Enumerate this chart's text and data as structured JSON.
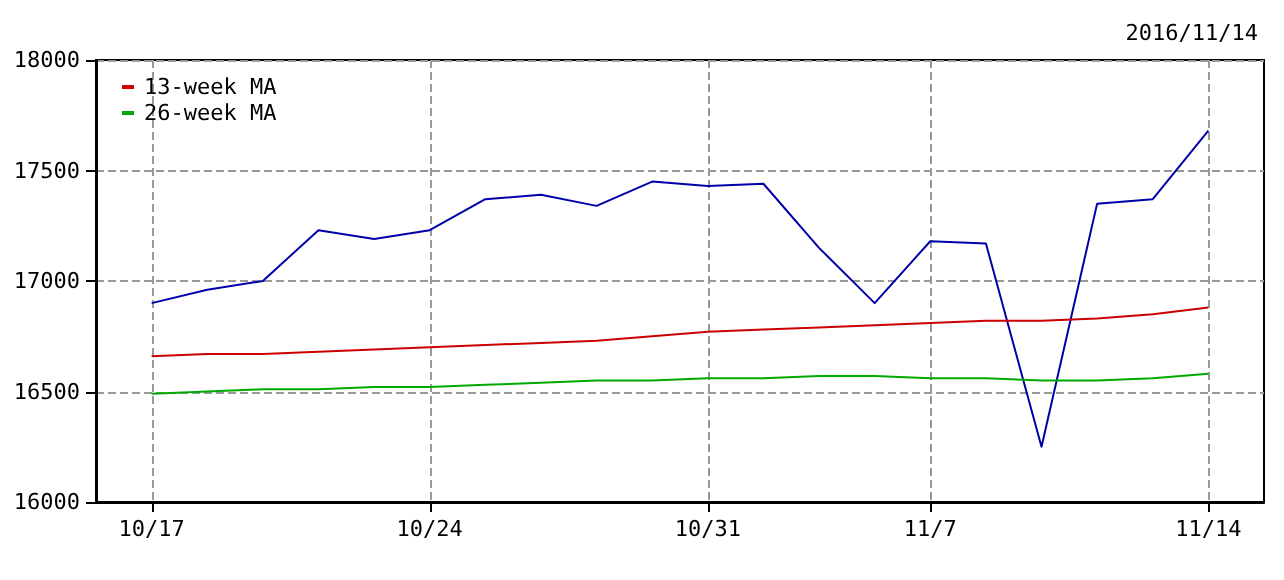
{
  "chart_data": {
    "type": "line",
    "subtitle": "2016/11/14",
    "categories": [
      "10/17",
      null,
      null,
      null,
      null,
      "10/24",
      null,
      null,
      null,
      null,
      "10/31",
      null,
      null,
      null,
      "11/7",
      null,
      null,
      null,
      null,
      "11/14"
    ],
    "series": [
      {
        "color": "#0000aa",
        "values": [
          16900,
          16960,
          17000,
          17230,
          17190,
          17230,
          17370,
          17390,
          17340,
          17450,
          17430,
          17440,
          17150,
          16900,
          17180,
          17170,
          16250,
          17350,
          17370,
          17680
        ]
      },
      {
        "name": "13-week MA",
        "color": "#cc0000",
        "values": [
          16660,
          16670,
          16670,
          16680,
          16690,
          16700,
          16710,
          16720,
          16730,
          16750,
          16770,
          16780,
          16790,
          16800,
          16810,
          16820,
          16820,
          16830,
          16850,
          16880
        ]
      },
      {
        "name": "26-week MA",
        "color": "#00aa00",
        "values": [
          16490,
          16500,
          16510,
          16510,
          16520,
          16520,
          16530,
          16540,
          16550,
          16550,
          16560,
          16560,
          16570,
          16570,
          16560,
          16560,
          16550,
          16550,
          16560,
          16580
        ]
      }
    ],
    "ylim": [
      16000,
      18000
    ],
    "yticks": [
      16000,
      16500,
      17000,
      17500,
      18000
    ],
    "grid": true,
    "legend": "top left",
    "marker": "none",
    "line_style": "solid"
  }
}
